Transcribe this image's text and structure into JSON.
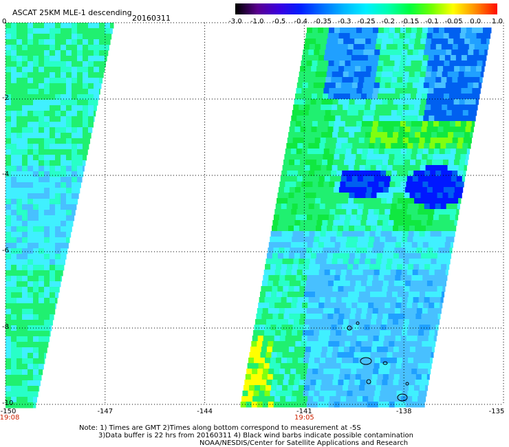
{
  "header": {
    "title": "ASCAT 25KM MLE-1 descending",
    "date": "20160311"
  },
  "colorbar": {
    "labels": [
      "-3.0",
      "-1.0",
      "-0.5",
      "-0.4",
      "-0.35",
      "-0.3",
      "-0.25",
      "-0.2",
      "-0.15",
      "-0.1",
      "-0.05",
      "0.0",
      "1.0"
    ],
    "colors": [
      "#000000",
      "#5a0090",
      "#3a00e0",
      "#0020ff",
      "#0070ff",
      "#00b8ff",
      "#00f0ff",
      "#00ffb0",
      "#00ff40",
      "#70ff00",
      "#ffff00",
      "#ff9000",
      "#ff1000"
    ]
  },
  "map": {
    "lon_range": [
      -150,
      -135
    ],
    "lat_range": [
      0,
      -10
    ],
    "x_tick_labels": [
      "-150",
      "-147",
      "-144",
      "-141",
      "-138",
      "-135"
    ],
    "y_tick_labels": [
      "0",
      "-2",
      "-4",
      "-6",
      "-8",
      "-10"
    ],
    "time_labels": [
      {
        "text": "19:08",
        "lon": -150
      },
      {
        "text": "19:05",
        "lon": -141
      }
    ]
  },
  "notes": {
    "line1": "Note: 1) Times are GMT 2)Times along bottom correspond to measurement at -5S",
    "line2": "3)Data buffer is 22 hrs from 20160311 4) Black wind barbs indicate possible contamination",
    "line3": "NOAA/NESDIS/Center for Satellite Applications and Research"
  }
}
